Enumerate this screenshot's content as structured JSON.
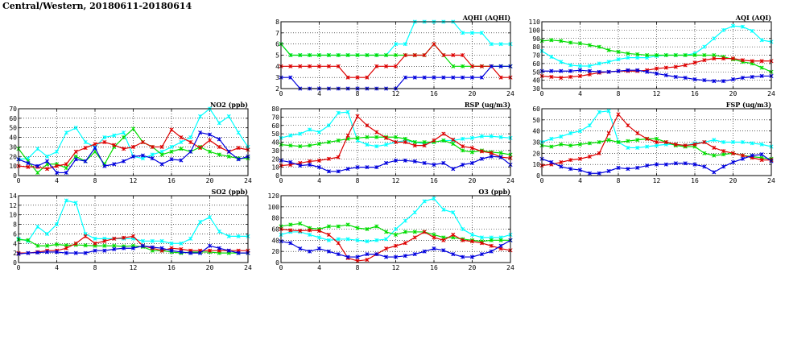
{
  "title": "Central/Western, 20180611-20180614",
  "series_colors": [
    "#00ffff",
    "#00dd00",
    "#dd0000",
    "#0000dd"
  ],
  "chart_data": [
    {
      "id": "aqhi",
      "type": "line",
      "title": "AQHI (AQHI)",
      "xlabel": "",
      "ylabel": "",
      "grid": true,
      "xlim": [
        0,
        24
      ],
      "xticks": [
        0,
        4,
        8,
        12,
        16,
        20,
        24
      ],
      "ylim": [
        2,
        8
      ],
      "yticks": [
        2,
        3,
        4,
        5,
        6,
        7,
        8
      ],
      "x": [
        0,
        1,
        2,
        3,
        4,
        5,
        6,
        7,
        8,
        9,
        10,
        11,
        12,
        13,
        14,
        15,
        16,
        17,
        18,
        19,
        20,
        21,
        22,
        23,
        24
      ],
      "series": [
        {
          "values": [
            6,
            5,
            5,
            5,
            5,
            5,
            5,
            5,
            5,
            5,
            5,
            5,
            6,
            6,
            8,
            8,
            8,
            8,
            8,
            7,
            7,
            7,
            6,
            6,
            6
          ]
        },
        {
          "values": [
            6,
            5,
            5,
            5,
            5,
            5,
            5,
            5,
            5,
            5,
            5,
            5,
            5,
            5,
            5,
            5,
            6,
            5,
            4,
            4,
            4,
            4,
            4,
            4,
            4
          ]
        },
        {
          "values": [
            4,
            4,
            4,
            4,
            4,
            4,
            4,
            3,
            3,
            3,
            4,
            4,
            4,
            5,
            5,
            5,
            6,
            5,
            5,
            5,
            4,
            4,
            4,
            3,
            3
          ]
        },
        {
          "values": [
            3,
            3,
            2,
            2,
            2,
            2,
            2,
            2,
            2,
            2,
            2,
            2,
            2,
            3,
            3,
            3,
            3,
            3,
            3,
            3,
            3,
            3,
            4,
            4,
            4
          ]
        }
      ]
    },
    {
      "id": "aqi",
      "type": "line",
      "title": "AQI (AQI)",
      "xlabel": "",
      "ylabel": "",
      "grid": true,
      "xlim": [
        0,
        24
      ],
      "xticks": [
        0,
        4,
        8,
        12,
        16,
        20,
        24
      ],
      "ylim": [
        30,
        110
      ],
      "yticks": [
        30,
        40,
        50,
        60,
        70,
        80,
        90,
        100,
        110
      ],
      "x": [
        0,
        1,
        2,
        3,
        4,
        5,
        6,
        7,
        8,
        9,
        10,
        11,
        12,
        13,
        14,
        15,
        16,
        17,
        18,
        19,
        20,
        21,
        22,
        23,
        24
      ],
      "series": [
        {
          "values": [
            75,
            68,
            62,
            58,
            57,
            57,
            60,
            62,
            65,
            67,
            67,
            67,
            69,
            70,
            70,
            70,
            72,
            80,
            90,
            100,
            105,
            104,
            99,
            88,
            86
          ]
        },
        {
          "values": [
            87,
            88,
            87,
            85,
            84,
            82,
            80,
            76,
            74,
            72,
            71,
            70,
            70,
            70,
            70,
            70,
            70,
            70,
            70,
            68,
            65,
            62,
            60,
            55,
            50
          ]
        },
        {
          "values": [
            45,
            44,
            43,
            44,
            45,
            47,
            49,
            50,
            51,
            51,
            51,
            52,
            54,
            55,
            56,
            58,
            61,
            64,
            66,
            66,
            66,
            64,
            63,
            63,
            63
          ]
        },
        {
          "values": [
            51,
            51,
            51,
            51,
            52,
            51,
            50,
            50,
            51,
            52,
            52,
            50,
            48,
            46,
            44,
            43,
            41,
            40,
            39,
            39,
            41,
            43,
            44,
            45,
            45
          ]
        }
      ]
    },
    {
      "id": "no2",
      "type": "line",
      "title": "NO2 (ppb)",
      "xlabel": "",
      "ylabel": "",
      "grid": true,
      "xlim": [
        0,
        24
      ],
      "xticks": [
        0,
        4,
        8,
        12,
        16,
        20,
        24
      ],
      "ylim": [
        0,
        70
      ],
      "yticks": [
        0,
        10,
        20,
        30,
        40,
        50,
        60,
        70
      ],
      "x": [
        0,
        1,
        2,
        3,
        4,
        5,
        6,
        7,
        8,
        9,
        10,
        11,
        12,
        13,
        14,
        15,
        16,
        17,
        18,
        19,
        20,
        21,
        22,
        23,
        24
      ],
      "series": [
        {
          "values": [
            17,
            18,
            28,
            20,
            25,
            45,
            50,
            35,
            30,
            40,
            42,
            45,
            20,
            18,
            22,
            25,
            30,
            35,
            40,
            62,
            70,
            55,
            62,
            45,
            30
          ]
        },
        {
          "values": [
            28,
            15,
            3,
            12,
            12,
            8,
            20,
            15,
            25,
            12,
            30,
            40,
            49,
            35,
            30,
            22,
            25,
            28,
            25,
            30,
            25,
            22,
            20,
            18,
            18
          ]
        },
        {
          "values": [
            10,
            9,
            9,
            7,
            10,
            12,
            25,
            29,
            33,
            35,
            32,
            28,
            30,
            35,
            30,
            30,
            48,
            40,
            35,
            29,
            37,
            30,
            25,
            29,
            27
          ]
        },
        {
          "values": [
            17,
            13,
            10,
            15,
            3,
            3,
            17,
            15,
            29,
            10,
            12,
            15,
            20,
            21,
            18,
            12,
            17,
            16,
            25,
            45,
            43,
            38,
            25,
            17,
            20
          ]
        }
      ]
    },
    {
      "id": "rsp",
      "type": "line",
      "title": "RSP (ug/m3)",
      "xlabel": "",
      "ylabel": "",
      "grid": true,
      "xlim": [
        0,
        24
      ],
      "xticks": [
        0,
        4,
        8,
        12,
        16,
        20,
        24
      ],
      "ylim": [
        0,
        80
      ],
      "yticks": [
        0,
        10,
        20,
        30,
        40,
        50,
        60,
        70,
        80
      ],
      "x": [
        0,
        1,
        2,
        3,
        4,
        5,
        6,
        7,
        8,
        9,
        10,
        11,
        12,
        13,
        14,
        15,
        16,
        17,
        18,
        19,
        20,
        21,
        22,
        23,
        24
      ],
      "series": [
        {
          "values": [
            45,
            48,
            50,
            55,
            52,
            60,
            75,
            76,
            42,
            37,
            35,
            37,
            40,
            42,
            40,
            38,
            40,
            42,
            42,
            44,
            45,
            47,
            47,
            46,
            45
          ]
        },
        {
          "values": [
            37,
            36,
            35,
            36,
            38,
            40,
            42,
            44,
            45,
            46,
            46,
            46,
            46,
            44,
            40,
            40,
            40,
            42,
            38,
            30,
            28,
            30,
            28,
            27,
            25
          ]
        },
        {
          "values": [
            12,
            13,
            15,
            17,
            18,
            20,
            22,
            48,
            71,
            60,
            52,
            45,
            40,
            40,
            36,
            36,
            42,
            50,
            43,
            35,
            33,
            29,
            27,
            22,
            21
          ]
        },
        {
          "values": [
            18,
            16,
            12,
            13,
            10,
            5,
            5,
            8,
            10,
            10,
            10,
            15,
            18,
            18,
            17,
            15,
            13,
            15,
            8,
            13,
            15,
            20,
            23,
            22,
            13
          ]
        }
      ]
    },
    {
      "id": "fsp",
      "type": "line",
      "title": "FSP (ug/m3)",
      "xlabel": "",
      "ylabel": "",
      "grid": true,
      "xlim": [
        0,
        24
      ],
      "xticks": [
        0,
        4,
        8,
        12,
        16,
        20,
        24
      ],
      "ylim": [
        0,
        60
      ],
      "yticks": [
        0,
        10,
        20,
        30,
        40,
        50,
        60
      ],
      "x": [
        0,
        1,
        2,
        3,
        4,
        5,
        6,
        7,
        8,
        9,
        10,
        11,
        12,
        13,
        14,
        15,
        16,
        17,
        18,
        19,
        20,
        21,
        22,
        23,
        24
      ],
      "series": [
        {
          "values": [
            30,
            33,
            35,
            38,
            40,
            45,
            57,
            58,
            30,
            25,
            25,
            26,
            27,
            28,
            28,
            27,
            29,
            30,
            32,
            30,
            30,
            30,
            29,
            28,
            26
          ]
        },
        {
          "values": [
            27,
            26,
            28,
            27,
            28,
            29,
            30,
            32,
            30,
            31,
            32,
            33,
            33,
            30,
            27,
            26,
            26,
            20,
            18,
            19,
            20,
            18,
            17,
            16,
            15
          ]
        },
        {
          "values": [
            9,
            10,
            12,
            14,
            15,
            17,
            20,
            38,
            55,
            45,
            38,
            33,
            30,
            30,
            28,
            27,
            28,
            30,
            25,
            22,
            20,
            18,
            16,
            14,
            14
          ]
        },
        {
          "values": [
            15,
            12,
            8,
            6,
            5,
            2,
            2,
            4,
            7,
            6,
            7,
            9,
            10,
            10,
            11,
            11,
            10,
            8,
            3,
            8,
            12,
            15,
            18,
            19,
            13
          ]
        }
      ]
    },
    {
      "id": "so2",
      "type": "line",
      "title": "SO2 (ppb)",
      "xlabel": "",
      "ylabel": "",
      "grid": true,
      "xlim": [
        0,
        24
      ],
      "xticks": [
        0,
        4,
        8,
        12,
        16,
        20,
        24
      ],
      "ylim": [
        0,
        14
      ],
      "yticks": [
        0,
        2,
        4,
        6,
        8,
        10,
        12,
        14
      ],
      "x": [
        0,
        1,
        2,
        3,
        4,
        5,
        6,
        7,
        8,
        9,
        10,
        11,
        12,
        13,
        14,
        15,
        16,
        17,
        18,
        19,
        20,
        21,
        22,
        23,
        24
      ],
      "series": [
        {
          "values": [
            5,
            4.5,
            7.5,
            6,
            8,
            13,
            12.5,
            6,
            5,
            5,
            5,
            5,
            5,
            4.5,
            4.5,
            4.5,
            4,
            4,
            5,
            8.5,
            9.5,
            6.5,
            5.5,
            5.5,
            5.5
          ]
        },
        {
          "values": [
            4.8,
            4.7,
            3.5,
            3.5,
            3.8,
            3.6,
            3.7,
            3.6,
            3.5,
            3.5,
            3.5,
            3.4,
            3.5,
            3.3,
            2.5,
            2.5,
            2.2,
            2.0,
            2.2,
            2.2,
            2.2,
            2.0,
            2.0,
            2.0,
            2.0
          ]
        },
        {
          "values": [
            2,
            2,
            2.2,
            2.5,
            2.5,
            3,
            4,
            5.5,
            4,
            4.5,
            5,
            5.2,
            5.5,
            3.5,
            3,
            2.5,
            3,
            2.8,
            2.5,
            2.5,
            2.5,
            2.5,
            2.5,
            2.5,
            2.5
          ]
        },
        {
          "values": [
            1.8,
            2,
            2.1,
            2.2,
            2.2,
            2,
            2,
            2,
            2.5,
            2.5,
            2.8,
            3,
            3,
            3.5,
            3.2,
            3,
            2.5,
            2.2,
            2,
            2,
            3.5,
            3,
            2.5,
            2,
            2
          ]
        }
      ]
    },
    {
      "id": "o3",
      "type": "line",
      "title": "O3 (ppb)",
      "xlabel": "",
      "ylabel": "",
      "grid": true,
      "xlim": [
        0,
        24
      ],
      "xticks": [
        0,
        4,
        8,
        12,
        16,
        20,
        24
      ],
      "ylim": [
        0,
        120
      ],
      "yticks": [
        0,
        20,
        40,
        60,
        80,
        100,
        120
      ],
      "x": [
        0,
        1,
        2,
        3,
        4,
        5,
        6,
        7,
        8,
        9,
        10,
        11,
        12,
        13,
        14,
        15,
        16,
        17,
        18,
        19,
        20,
        21,
        22,
        23,
        24
      ],
      "series": [
        {
          "values": [
            50,
            55,
            55,
            50,
            45,
            40,
            42,
            42,
            40,
            38,
            40,
            42,
            60,
            75,
            90,
            110,
            115,
            95,
            90,
            60,
            50,
            45,
            45,
            45,
            50
          ]
        },
        {
          "values": [
            65,
            68,
            70,
            62,
            60,
            65,
            65,
            68,
            62,
            60,
            65,
            55,
            50,
            55,
            55,
            55,
            50,
            45,
            45,
            42,
            40,
            38,
            40,
            40,
            40
          ]
        },
        {
          "values": [
            60,
            58,
            57,
            58,
            57,
            50,
            35,
            8,
            3,
            5,
            15,
            25,
            30,
            35,
            45,
            55,
            45,
            40,
            50,
            40,
            38,
            35,
            30,
            25,
            22
          ]
        },
        {
          "values": [
            38,
            35,
            25,
            20,
            25,
            20,
            15,
            10,
            10,
            15,
            15,
            10,
            10,
            12,
            15,
            20,
            25,
            22,
            15,
            10,
            10,
            15,
            20,
            30,
            40
          ]
        }
      ]
    }
  ]
}
